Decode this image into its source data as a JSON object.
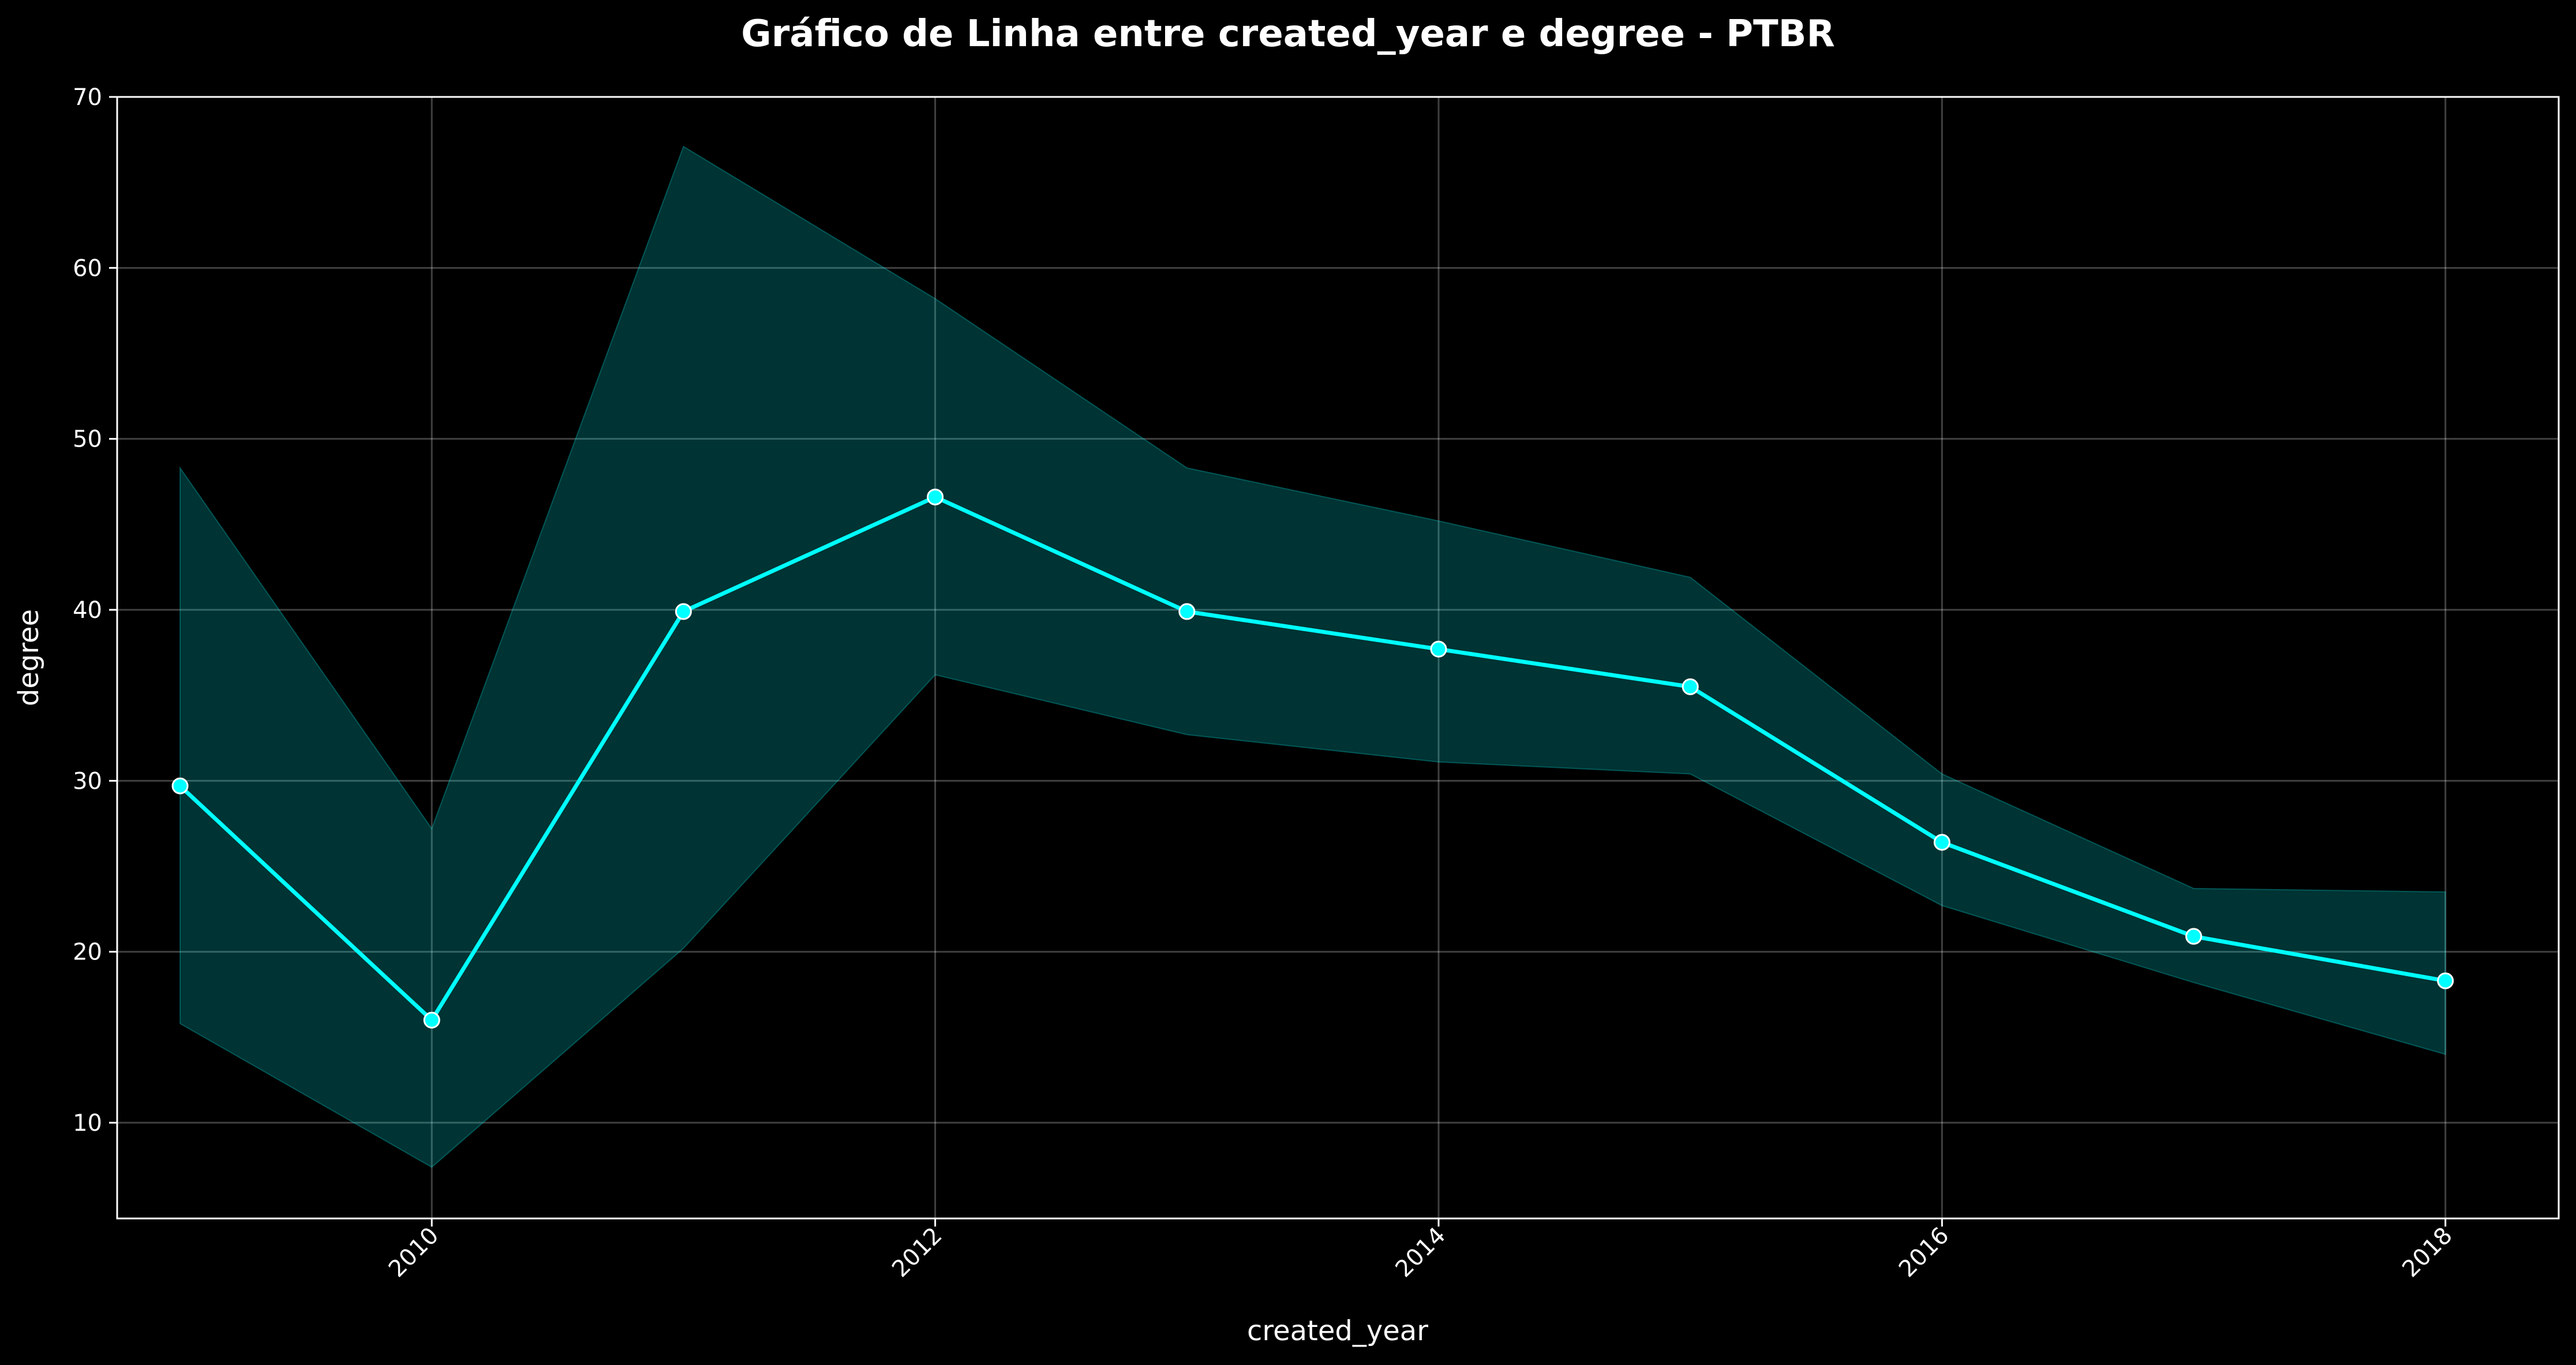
{
  "chart_data": {
    "type": "line",
    "title": "Gráfico de Linha entre created_year e degree - PTBR",
    "xlabel": "created_year",
    "ylabel": "degree",
    "xlim": [
      2008.75,
      2018.45
    ],
    "ylim": [
      4.4,
      70
    ],
    "x_ticks": [
      2010,
      2012,
      2014,
      2016,
      2018
    ],
    "y_ticks": [
      10,
      20,
      30,
      40,
      50,
      60,
      70
    ],
    "grid": true,
    "legend": "none",
    "colors": {
      "background": "#000000",
      "line": "#00ffff",
      "marker_edge": "#ffffff",
      "band": "#00ffff",
      "axes": "#ffffff",
      "grid": "#ffffff"
    },
    "series": [
      {
        "x": [
          2009,
          2010,
          2011,
          2012,
          2013,
          2014,
          2015,
          2016,
          2017,
          2018
        ],
        "values": [
          29.7,
          16.0,
          39.9,
          46.6,
          39.9,
          37.7,
          35.5,
          26.4,
          20.9,
          18.3
        ],
        "ci_upper": [
          48.3,
          27.2,
          67.1,
          58.2,
          48.3,
          45.2,
          41.9,
          30.4,
          23.7,
          23.5
        ],
        "ci_lower": [
          15.8,
          7.4,
          20.2,
          36.2,
          32.7,
          31.1,
          30.4,
          22.7,
          18.2,
          14.0
        ]
      }
    ]
  }
}
